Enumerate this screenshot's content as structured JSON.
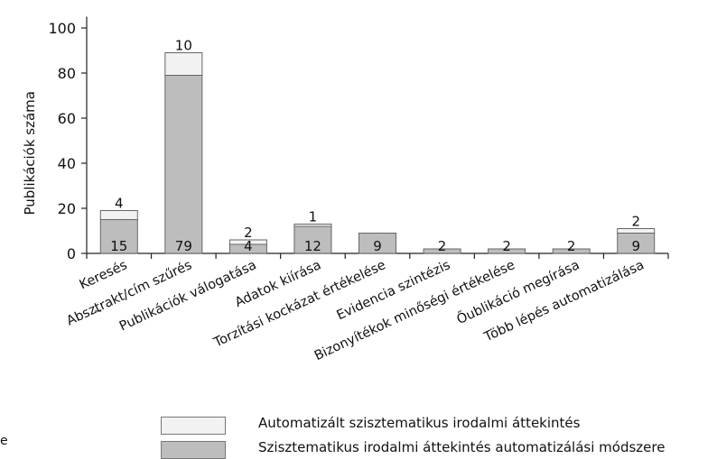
{
  "chart_data": {
    "type": "bar",
    "stacked": true,
    "ylabel": "Publikációk száma",
    "ylim": [
      0,
      105
    ],
    "yticks": [
      0,
      20,
      40,
      60,
      80,
      100
    ],
    "grid": false,
    "categories": [
      "Keresés",
      "Absztrakt/cím szűrés",
      "Publikációk válogatása",
      "Adatok kiírása",
      "Torzítási kockázat értékelése",
      "Evidencia szintézis",
      "Bizonyítékok minőségi értékelése",
      "Őublikáció megírása",
      "Több lépés automatizálása"
    ],
    "series": [
      {
        "name": "Szisztematikus irodalmi áttekintés automatizálási módszere",
        "color": "#bdbdbd",
        "values": [
          15,
          79,
          4,
          12,
          9,
          2,
          2,
          2,
          9
        ],
        "labels": [
          "15",
          "79",
          "4",
          "12",
          "9",
          "2",
          "2",
          "2",
          "9"
        ]
      },
      {
        "name": "Automatizált szisztematikus irodalmi áttekintés",
        "color": "#f2f2f2",
        "values": [
          4,
          10,
          2,
          1,
          0,
          0,
          0,
          0,
          2
        ],
        "labels": [
          "4",
          "10",
          "2",
          "1",
          "",
          "",
          "",
          "",
          "2"
        ]
      }
    ],
    "legend_position": "bottom"
  },
  "legend": {
    "items": [
      {
        "label": "Automatizált szisztematikus irodalmi áttekintés",
        "color": "#f2f2f2"
      },
      {
        "label": "Szisztematikus irodalmi áttekintés automatizálási módszere",
        "color": "#bdbdbd"
      }
    ]
  },
  "edge": {
    "dash": "_",
    "e": "e"
  }
}
